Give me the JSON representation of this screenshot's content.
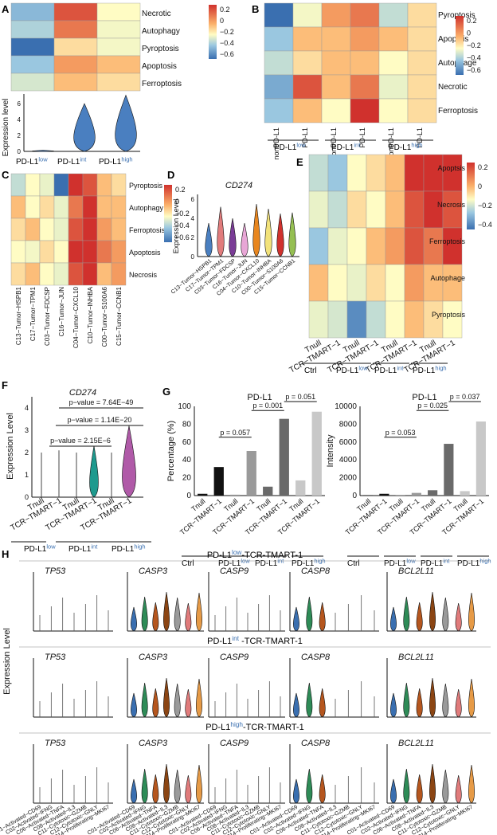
{
  "colors": {
    "low": "#3a6fb0",
    "mid": "#fffcc4",
    "high": "#d0312d"
  },
  "A": {
    "label": "A",
    "rows": [
      "Necrotic",
      "Autophagy",
      "Pyroptosis",
      "Apoptosis",
      "Ferroptosis"
    ],
    "cols": [
      "PD-L1low",
      "PD-L1int",
      "PD-L1high"
    ],
    "values": [
      [
        -0.35,
        0.25,
        0.0
      ],
      [
        -0.25,
        0.2,
        -0.05
      ],
      [
        -0.6,
        0.05,
        -0.05
      ],
      [
        -0.3,
        0.15,
        0.1
      ],
      [
        -0.15,
        0.1,
        0.05
      ]
    ],
    "scale_ticks": [
      "0.2",
      "0",
      "−0.2",
      "−0.4",
      "−0.6"
    ],
    "violin": {
      "ylabel": "Expression level",
      "ticks": [
        "0",
        "2",
        "4",
        "6"
      ],
      "groups": [
        "PD-L1low",
        "PD-L1int",
        "PD-L1high"
      ],
      "heights": [
        0.1,
        4.0,
        4.7
      ]
    }
  },
  "B": {
    "label": "B",
    "rows": [
      "Pyroptosis",
      "Apoptsis",
      "Autophage",
      "Necrotic",
      "Ferroptosis"
    ],
    "cols": [
      "nonPD-L1",
      "PD-L1",
      "nonPD-L1",
      "PD-L1",
      "nonPD-L1",
      "PD-L1"
    ],
    "groups": [
      "PD-L1low",
      "PD-L1int",
      "PD-L1high"
    ],
    "values": [
      [
        -0.6,
        -0.05,
        0.15,
        0.2,
        -0.2,
        0.05
      ],
      [
        -0.3,
        0.1,
        0.1,
        0.15,
        0.1,
        0.05
      ],
      [
        -0.2,
        0.05,
        0.1,
        0.1,
        0.0,
        0.05
      ],
      [
        -0.4,
        0.25,
        0.1,
        0.2,
        -0.1,
        0.05
      ],
      [
        -0.3,
        0.1,
        0.0,
        0.3,
        0.0,
        0.05
      ]
    ],
    "scale_ticks": [
      "0.2",
      "0",
      "−0.2",
      "−0.4",
      "−0.6"
    ]
  },
  "C": {
    "label": "C",
    "rows": [
      "Pyroptosis",
      "Autophagy",
      "Ferroptosis",
      "Apoptosis",
      "Necrosis"
    ],
    "cols": [
      "C13−Tumor−HSPB1",
      "C17−Tumor−TPM1",
      "C03−Tumor−FDCSP",
      "C16−Tumor−JUN",
      "C04−Tumor−CXCL10",
      "C10−Tumor−INHBA",
      "C00−Tumor−S100A6",
      "C15−Tumor−CCNB1"
    ],
    "values": [
      [
        -0.2,
        0.0,
        -0.1,
        -0.6,
        0.3,
        0.25,
        0.1,
        0.05
      ],
      [
        0.1,
        0.0,
        0.05,
        -0.1,
        0.2,
        0.3,
        0.1,
        0.1
      ],
      [
        0.05,
        0.1,
        0.0,
        -0.1,
        0.25,
        0.3,
        0.15,
        0.1
      ],
      [
        0.0,
        -0.05,
        0.05,
        0.0,
        0.3,
        0.3,
        0.2,
        0.15
      ],
      [
        0.05,
        0.1,
        0.0,
        -0.1,
        0.25,
        0.3,
        0.1,
        0.15
      ]
    ],
    "scale_ticks": [
      "0.2",
      "0",
      "−0.2",
      "−0.4",
      "−0.6"
    ]
  },
  "D": {
    "label": "D",
    "title": "CD274",
    "ylabel": "Expression Level",
    "ticks": [
      "0",
      "2",
      "4",
      "6"
    ],
    "groups": [
      "C13−Tumor−HSPB1",
      "C17−Tumor−TPM1",
      "C03−Tumor−FDCSP",
      "C16−Tumor−JUN",
      "C04−Tumor−CXCL10",
      "C10−Tumor−INHBA",
      "C00−Tumor−S100A6",
      "C15−Tumor−CCNB1"
    ],
    "heights": [
      3.5,
      5.2,
      4.0,
      3.5,
      5.5,
      5.0,
      4.5,
      4.6
    ],
    "colors": [
      "#4a7fc0",
      "#e17c7c",
      "#7a3c96",
      "#e8a6d6",
      "#e8861f",
      "#f2e27a",
      "#d0312d",
      "#95bf52"
    ]
  },
  "E": {
    "label": "E",
    "rows": [
      "Apoptsis",
      "Necrosis",
      "Ferroptosis",
      "Autophage",
      "Pyroptosis"
    ],
    "cols": [
      "Tnull",
      "TCR−TMART−1",
      "Tnull",
      "TCR−TMART−1",
      "Tnull",
      "TCR−TMART−1",
      "Tnull",
      "TCR−TMART−1"
    ],
    "groups": [
      "Ctrl",
      "PD-L1low",
      "PD-L1int",
      "PD-L1high"
    ],
    "values": [
      [
        -0.2,
        -0.3,
        0.0,
        0.05,
        0.1,
        0.3,
        0.3,
        0.3
      ],
      [
        -0.1,
        -0.2,
        0.05,
        0.0,
        0.1,
        0.25,
        0.3,
        0.25
      ],
      [
        -0.3,
        -0.1,
        0.0,
        0.1,
        0.15,
        0.25,
        0.2,
        0.3
      ],
      [
        0.1,
        0.0,
        -0.1,
        0.05,
        0.0,
        0.15,
        0.1,
        0.1
      ],
      [
        -0.1,
        -0.15,
        -0.5,
        -0.2,
        0.0,
        0.1,
        0.05,
        0.0
      ]
    ],
    "scale_ticks": [
      "0.2",
      "0",
      "−0.2",
      "−0.4"
    ]
  },
  "F": {
    "label": "F",
    "title": "CD274",
    "ylabel": "Expression Level",
    "ticks": [
      "0",
      "1",
      "2",
      "3",
      "4"
    ],
    "groups": [
      "Tnull",
      "TCR−TMART−1",
      "Tnull",
      "TCR−TMART−1",
      "Tnull",
      "TCR−TMART−1"
    ],
    "heights": [
      2.0,
      2.1,
      2.0,
      2.3,
      2.0,
      3.2
    ],
    "pvals": [
      "p−value = 7.64E−49",
      "p−value = 1.14E−20",
      "p−value = 2.15E−6"
    ],
    "group_labels": [
      "PD-L1low",
      "PD-L1int",
      "PD-L1high"
    ]
  },
  "G": {
    "label": "G",
    "left": {
      "title": "PD-L1",
      "ylabel": "Percentage (%)",
      "ticks": [
        "0",
        "20",
        "40",
        "60",
        "80",
        "100"
      ],
      "values": [
        2,
        32,
        1,
        50,
        10,
        86,
        17,
        94
      ],
      "pvals": [
        "p = 0.057",
        "p = 0.001",
        "p = 0.051"
      ]
    },
    "right": {
      "title": "PD-L1",
      "ylabel": "Intensity",
      "ticks": [
        "0",
        "2000",
        "4000",
        "6000",
        "8000",
        "10000"
      ],
      "values": [
        50,
        200,
        80,
        300,
        600,
        5800,
        500,
        8300
      ],
      "pvals": [
        "p = 0.053",
        "p = 0.025",
        "p = 0.037"
      ]
    },
    "cols": [
      "Tnull",
      "TCR−TMART−1",
      "Tnull",
      "TCR−TMART−1",
      "Tnull",
      "TCR−TMART−1",
      "Tnull",
      "TCR−TMART−1"
    ],
    "groups": [
      "Ctrl",
      "PD-L1low",
      "PD-L1int",
      "PD-L1high"
    ]
  },
  "H": {
    "label": "H",
    "ylabel": "Expression Level",
    "rows": [
      "PD-L1low-TCR-TMART-1",
      "PD-L1int -TCR-TMART-1",
      "PD-L1high-TCR-TMART-1"
    ],
    "genes": [
      "TP53",
      "CASP3",
      "CASP9",
      "CASP8",
      "BCL2L11"
    ],
    "clusters": [
      "C01−Activated−CD69",
      "C02−Activated−IFNG",
      "C06−Activated−TNFA",
      "C08−Activated−IL3",
      "C11−Cytotoxic−GZMB",
      "C12−Cytotoxic−GNLY",
      "C14−Proliferating−MKI67"
    ]
  }
}
